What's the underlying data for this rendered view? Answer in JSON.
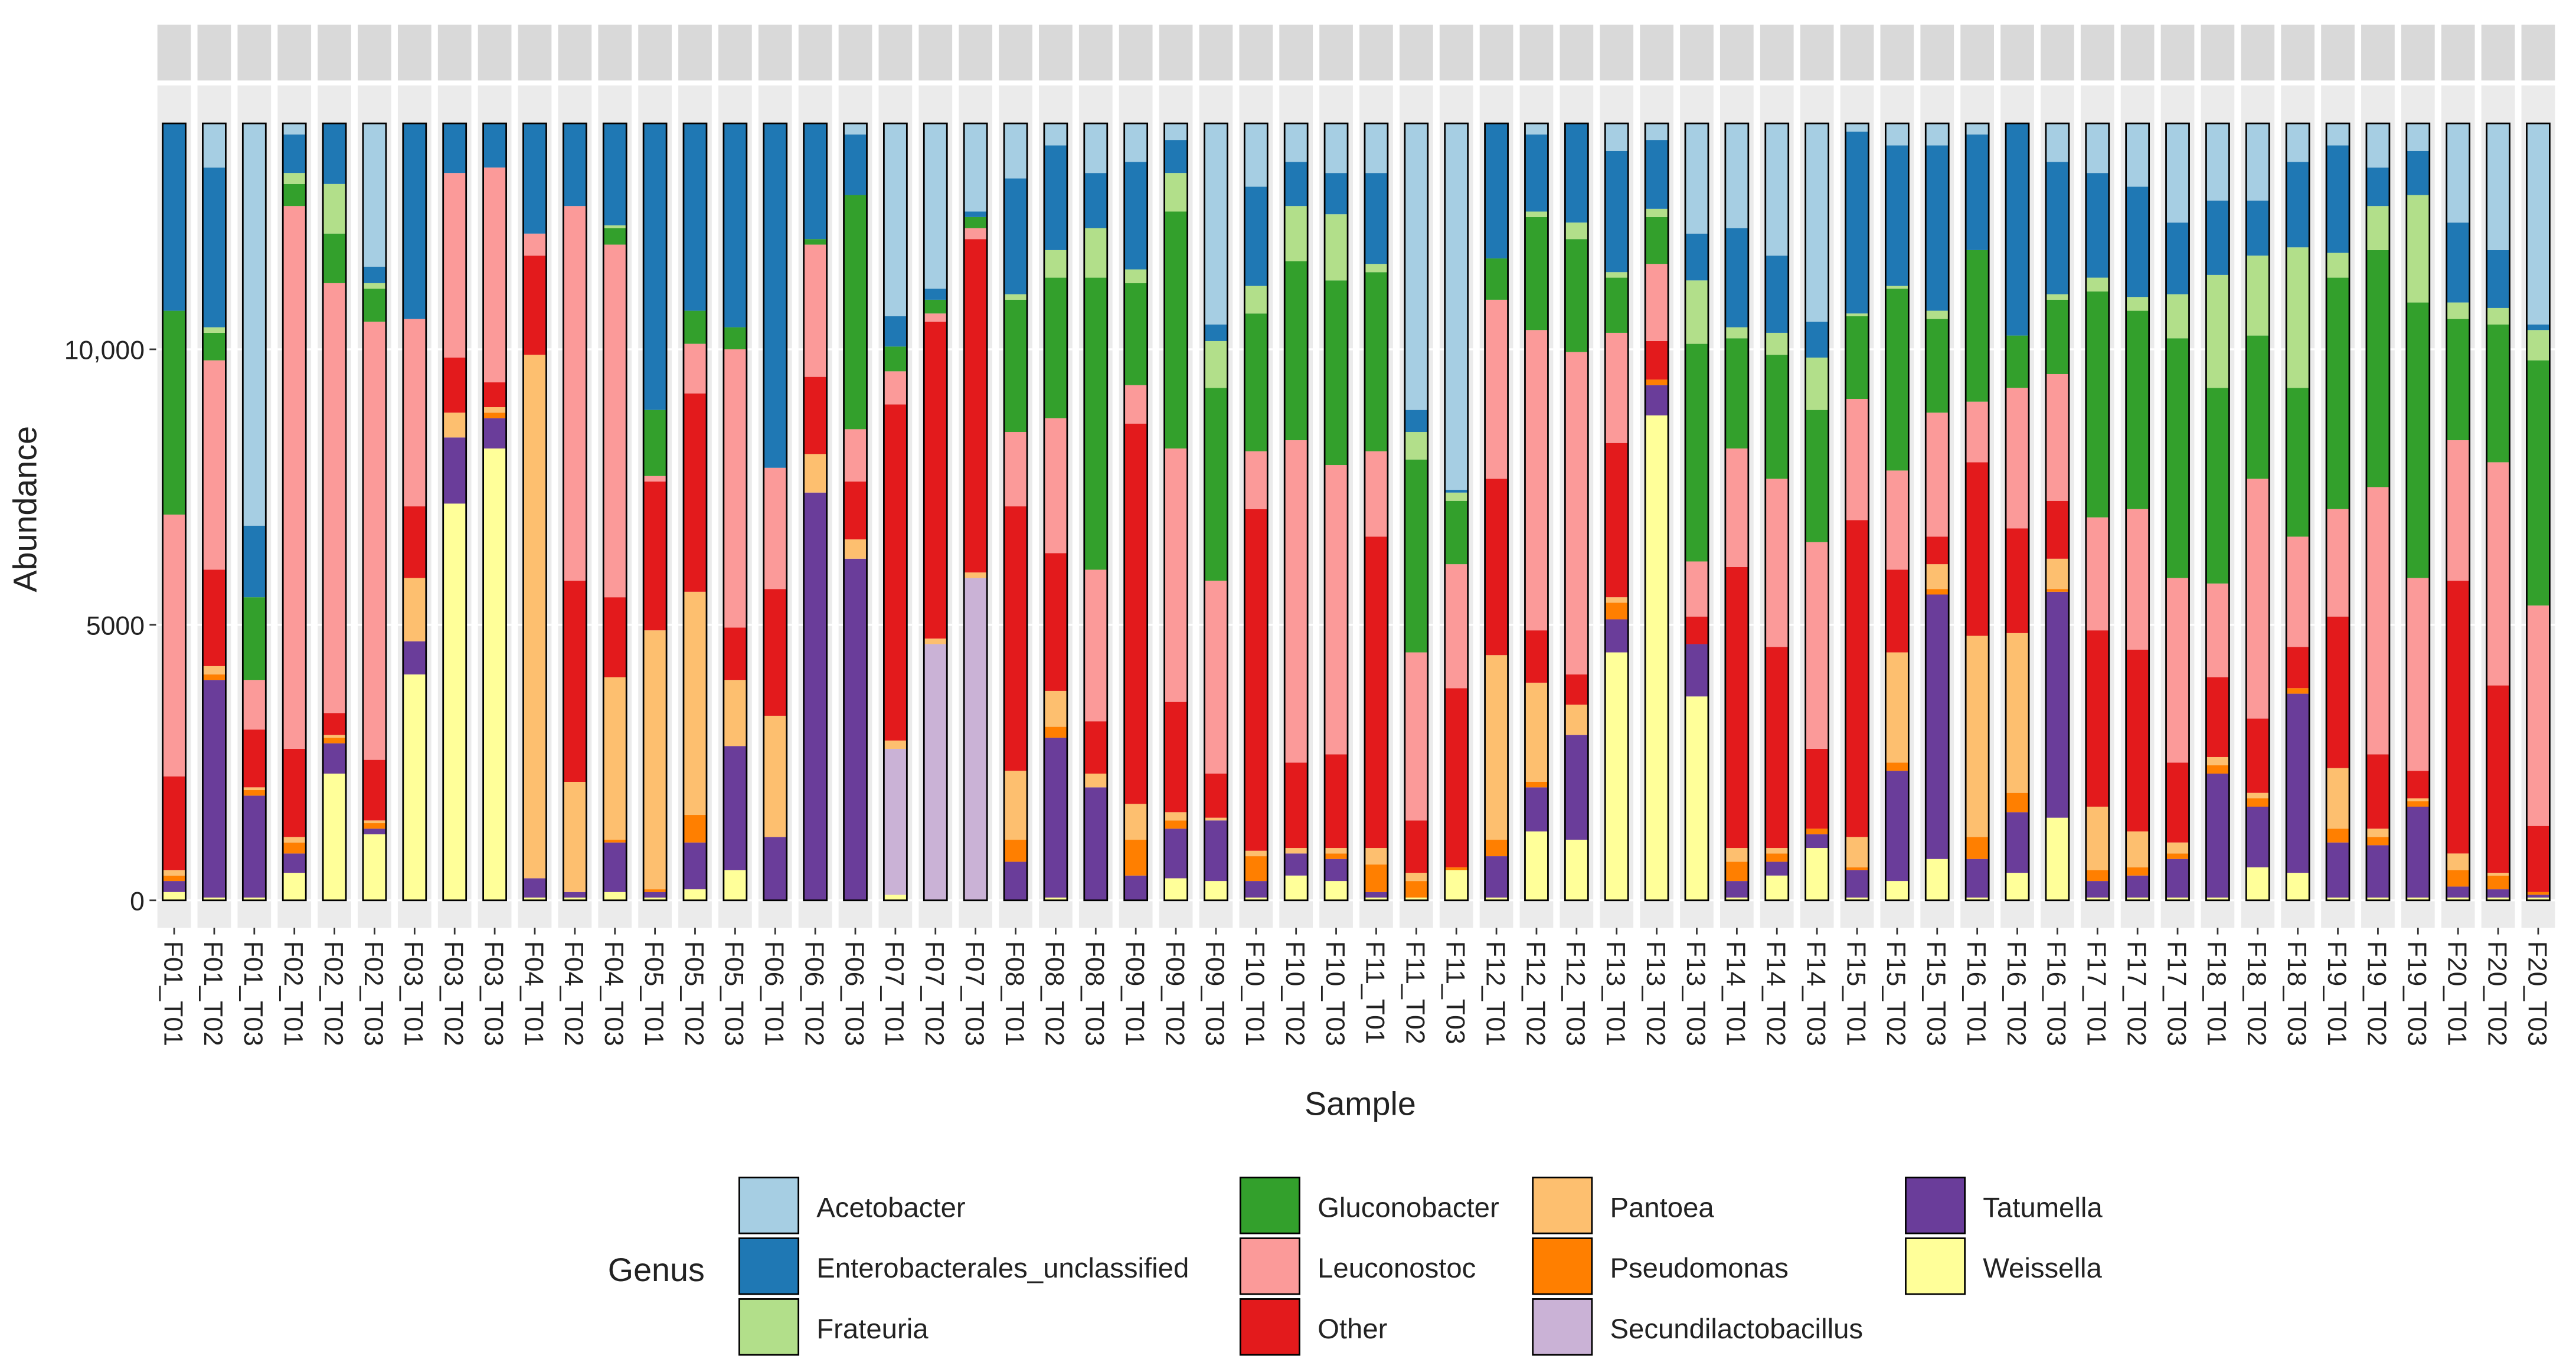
{
  "chart_data": {
    "type": "stacked_bar",
    "x_label": "Sample",
    "y_label": "Abundance",
    "legend_title": "Genus",
    "legend": "bottom",
    "grid": true,
    "categories": [
      "F01_T01",
      "F01_T02",
      "F01_T03",
      "F02_T01",
      "F02_T02",
      "F02_T03",
      "F03_T01",
      "F03_T02",
      "F03_T03",
      "F04_T01",
      "F04_T02",
      "F04_T03",
      "F05_T01",
      "F05_T02",
      "F05_T03",
      "F06_T01",
      "F06_T02",
      "F06_T03",
      "F07_T01",
      "F07_T02",
      "F07_T03",
      "F08_T01",
      "F08_T02",
      "F08_T03",
      "F09_T01",
      "F09_T02",
      "F09_T03",
      "F10_T01",
      "F10_T02",
      "F10_T03",
      "F11_T01",
      "F11_T02",
      "F11_T03",
      "F12_T01",
      "F12_T02",
      "F12_T03",
      "F13_T01",
      "F13_T02",
      "F13_T03",
      "F14_T01",
      "F14_T02",
      "F14_T03",
      "F15_T01",
      "F15_T02",
      "F15_T03",
      "F16_T01",
      "F16_T02",
      "F16_T03",
      "F17_T01",
      "F17_T02",
      "F17_T03",
      "F18_T01",
      "F18_T02",
      "F18_T03",
      "F19_T01",
      "F19_T02",
      "F19_T03",
      "F20_T01",
      "F20_T02",
      "F20_T03"
    ],
    "ylim": [
      -500,
      14700
    ],
    "yticks": [
      0,
      5000,
      {
        "value": 10000,
        "label": "10,000"
      }
    ],
    "series": [
      {
        "name": "Acetobacter",
        "color": "#a6cee3",
        "values": [
          0,
          800,
          7300,
          200,
          0,
          2600,
          0,
          0,
          0,
          0,
          0,
          0,
          0,
          0,
          0,
          0,
          0,
          200,
          3500,
          3000,
          1600,
          1000,
          400,
          900,
          700,
          300,
          3650,
          1150,
          700,
          900,
          900,
          5200,
          6650,
          0,
          200,
          0,
          500,
          300,
          2000,
          1900,
          2400,
          3600,
          150,
          400,
          400,
          200,
          0,
          700,
          900,
          1150,
          1800,
          1400,
          1400,
          700,
          400,
          800,
          500,
          1800,
          2300,
          3650
        ]
      },
      {
        "name": "Enterobacterales_unclassified",
        "color": "#1f78b4",
        "values": [
          3400,
          2900,
          1300,
          700,
          1100,
          300,
          3550,
          900,
          800,
          2000,
          1500,
          1850,
          5200,
          3400,
          3700,
          6250,
          2100,
          1100,
          550,
          200,
          100,
          2100,
          1900,
          1000,
          1950,
          600,
          300,
          1800,
          800,
          750,
          1650,
          400,
          50,
          2450,
          1400,
          1800,
          2200,
          1250,
          850,
          1800,
          1400,
          650,
          3300,
          2550,
          3000,
          2100,
          3850,
          2400,
          1900,
          2000,
          1300,
          1350,
          1000,
          1550,
          1950,
          700,
          800,
          1450,
          1050,
          100
        ]
      },
      {
        "name": "Frateuria",
        "color": "#b2df8a",
        "values": [
          0,
          100,
          0,
          200,
          900,
          100,
          0,
          0,
          0,
          0,
          0,
          50,
          0,
          0,
          0,
          0,
          0,
          0,
          0,
          0,
          0,
          100,
          500,
          900,
          250,
          700,
          850,
          500,
          1000,
          1200,
          150,
          500,
          150,
          0,
          100,
          300,
          100,
          150,
          1150,
          200,
          400,
          950,
          50,
          50,
          150,
          0,
          0,
          100,
          250,
          250,
          800,
          2050,
          1450,
          2550,
          450,
          800,
          1950,
          300,
          300,
          550
        ]
      },
      {
        "name": "Gluconobacter",
        "color": "#33a02c",
        "values": [
          3700,
          500,
          1500,
          400,
          900,
          600,
          0,
          0,
          0,
          0,
          0,
          300,
          1200,
          600,
          400,
          0,
          100,
          4250,
          450,
          250,
          200,
          2400,
          2550,
          5300,
          1850,
          4300,
          3500,
          2500,
          3250,
          3350,
          3250,
          3500,
          1150,
          750,
          2050,
          2050,
          1000,
          850,
          3950,
          2000,
          2250,
          2400,
          1500,
          3300,
          1700,
          2750,
          950,
          1350,
          4100,
          3600,
          4350,
          3550,
          2600,
          2700,
          4200,
          4300,
          5000,
          2200,
          2500,
          4450
        ]
      },
      {
        "name": "Leuconostoc",
        "color": "#fb9a99",
        "values": [
          4750,
          3800,
          900,
          9850,
          7800,
          7950,
          3400,
          3350,
          3900,
          400,
          6800,
          6400,
          100,
          900,
          5050,
          2200,
          2400,
          950,
          600,
          150,
          200,
          1350,
          2450,
          2750,
          700,
          4600,
          3500,
          1050,
          5850,
          5250,
          1550,
          3050,
          2250,
          3250,
          5450,
          5850,
          2000,
          1400,
          1000,
          2150,
          3050,
          3750,
          2200,
          1800,
          2250,
          1100,
          2550,
          2300,
          2050,
          2550,
          3350,
          1700,
          4350,
          2000,
          1950,
          4850,
          3500,
          2550,
          4050,
          4000
        ]
      },
      {
        "name": "Other",
        "color": "#e31a1c",
        "values": [
          1700,
          1750,
          1050,
          1600,
          400,
          1100,
          1300,
          1000,
          450,
          1800,
          3650,
          1450,
          2700,
          3600,
          950,
          2300,
          1400,
          1050,
          6100,
          5750,
          6050,
          4800,
          2500,
          950,
          6900,
          2000,
          800,
          6200,
          1550,
          1700,
          5650,
          950,
          3250,
          3200,
          950,
          550,
          2800,
          700,
          500,
          5100,
          3650,
          1450,
          5750,
          1500,
          500,
          3150,
          1900,
          1050,
          3200,
          3300,
          1450,
          1450,
          1350,
          750,
          2750,
          1350,
          500,
          4950,
          3400,
          1200
        ]
      },
      {
        "name": "Pantoea",
        "color": "#fdbf6f",
        "values": [
          100,
          150,
          50,
          100,
          50,
          50,
          1150,
          450,
          100,
          9500,
          2000,
          2950,
          4700,
          4050,
          1200,
          2200,
          700,
          350,
          150,
          100,
          100,
          1250,
          650,
          250,
          650,
          150,
          50,
          100,
          100,
          100,
          300,
          150,
          0,
          3350,
          1800,
          550,
          100,
          0,
          0,
          250,
          100,
          0,
          550,
          2000,
          450,
          3650,
          2900,
          550,
          1150,
          650,
          200,
          150,
          100,
          0,
          1100,
          150,
          50,
          300,
          50,
          0
        ]
      },
      {
        "name": "Pseudomonas",
        "color": "#ff7f00",
        "values": [
          100,
          100,
          100,
          200,
          100,
          100,
          0,
          0,
          100,
          0,
          0,
          50,
          50,
          500,
          0,
          0,
          0,
          0,
          0,
          0,
          0,
          400,
          200,
          0,
          650,
          150,
          0,
          450,
          0,
          100,
          500,
          300,
          50,
          300,
          100,
          0,
          300,
          100,
          0,
          350,
          150,
          100,
          50,
          150,
          100,
          400,
          350,
          50,
          200,
          150,
          100,
          150,
          150,
          100,
          250,
          150,
          100,
          300,
          250,
          50
        ]
      },
      {
        "name": "Secundilactobacillus",
        "color": "#cab2d6",
        "values": [
          0,
          0,
          0,
          0,
          0,
          0,
          0,
          0,
          0,
          0,
          0,
          0,
          0,
          0,
          0,
          0,
          0,
          0,
          2650,
          4650,
          5850,
          0,
          0,
          0,
          0,
          0,
          0,
          0,
          0,
          0,
          0,
          0,
          0,
          0,
          0,
          0,
          0,
          0,
          0,
          0,
          0,
          0,
          0,
          0,
          0,
          0,
          0,
          0,
          0,
          0,
          0,
          0,
          0,
          0,
          0,
          0,
          0,
          0,
          0,
          0
        ]
      },
      {
        "name": "Tatumella",
        "color": "#6a3d9a",
        "values": [
          200,
          3950,
          1850,
          350,
          550,
          100,
          600,
          1200,
          550,
          350,
          100,
          900,
          100,
          850,
          2250,
          1150,
          7400,
          6200,
          0,
          0,
          0,
          700,
          2900,
          2050,
          450,
          900,
          1100,
          300,
          400,
          400,
          100,
          0,
          0,
          750,
          800,
          1900,
          600,
          550,
          950,
          300,
          250,
          250,
          500,
          2000,
          4800,
          700,
          1100,
          4100,
          300,
          400,
          700,
          2250,
          1100,
          3250,
          1000,
          950,
          1650,
          200,
          150,
          50
        ]
      },
      {
        "name": "Weissella",
        "color": "#ffff99",
        "values": [
          150,
          50,
          50,
          500,
          2300,
          1200,
          4100,
          7200,
          8200,
          50,
          50,
          150,
          50,
          200,
          550,
          0,
          0,
          0,
          100,
          0,
          0,
          0,
          50,
          0,
          0,
          400,
          350,
          50,
          450,
          350,
          50,
          50,
          550,
          50,
          1250,
          1100,
          4500,
          8800,
          3700,
          50,
          450,
          950,
          50,
          350,
          750,
          50,
          500,
          1500,
          50,
          50,
          50,
          50,
          600,
          500,
          50,
          50,
          50,
          50,
          50,
          50
        ]
      }
    ]
  }
}
